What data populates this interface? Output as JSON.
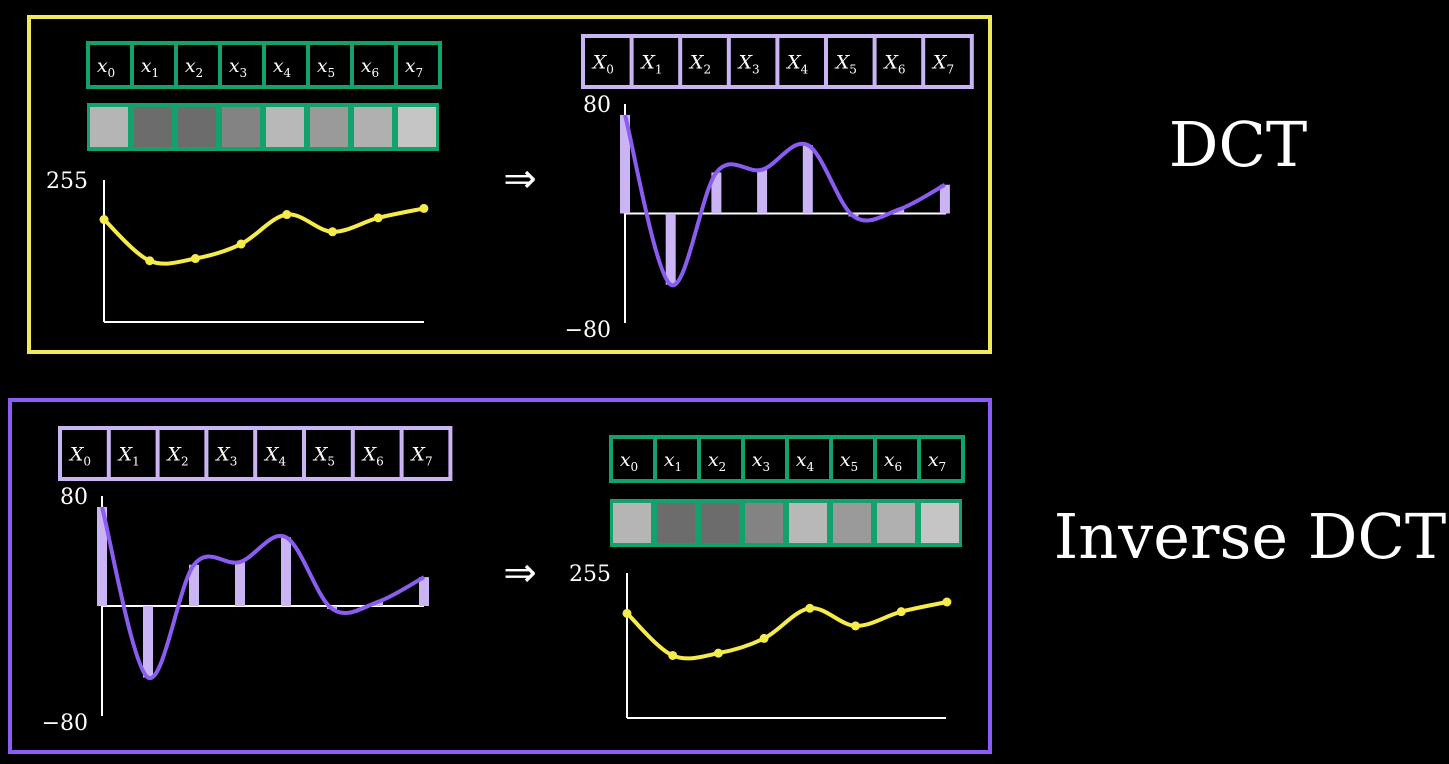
{
  "titles": {
    "dct": "DCT",
    "inverse": "Inverse DCT"
  },
  "arrow": "⇒",
  "colors": {
    "dct_frame": "#f2e95a",
    "inverse_frame": "#8b5cf6",
    "green": "#13a26b",
    "lavender": "#cbb4f4",
    "yellow_curve": "#f5ec4c",
    "purple_curve": "#8a5cf0",
    "axis": "#ffffff"
  },
  "signal_labels": [
    "x0",
    "x1",
    "x2",
    "x3",
    "x4",
    "x5",
    "x6",
    "x7"
  ],
  "coeff_labels": [
    "X0",
    "X1",
    "X2",
    "X3",
    "X4",
    "X5",
    "X6",
    "X7"
  ],
  "pixel_grays": [
    "#b5b5b5",
    "#6c6c6c",
    "#6c6c6c",
    "#838383",
    "#b8b8b8",
    "#9a9a9a",
    "#b0b0b0",
    "#c5c5c5"
  ],
  "chart_data": [
    {
      "type": "line",
      "panel": "dct-input",
      "x": [
        0,
        1,
        2,
        3,
        4,
        5,
        6,
        7
      ],
      "values": [
        184,
        110,
        114,
        140,
        193,
        162,
        187,
        204
      ],
      "ylim": [
        0,
        255
      ],
      "ytick_labels": [
        "255"
      ]
    },
    {
      "type": "bar",
      "panel": "dct-output",
      "x": [
        0,
        1,
        2,
        3,
        4,
        5,
        6,
        7
      ],
      "values": [
        72,
        -52,
        30,
        32,
        50,
        -2,
        3,
        21
      ],
      "ylim": [
        -80,
        80
      ],
      "ytick_labels": [
        "80",
        "−80"
      ]
    },
    {
      "type": "bar",
      "panel": "inverse-input",
      "x": [
        0,
        1,
        2,
        3,
        4,
        5,
        6,
        7
      ],
      "values": [
        72,
        -52,
        30,
        32,
        50,
        -2,
        3,
        21
      ],
      "ylim": [
        -80,
        80
      ],
      "ytick_labels": [
        "80",
        "−80"
      ]
    },
    {
      "type": "line",
      "panel": "inverse-output",
      "x": [
        0,
        1,
        2,
        3,
        4,
        5,
        6,
        7
      ],
      "values": [
        184,
        110,
        114,
        140,
        193,
        162,
        187,
        204
      ],
      "ylim": [
        0,
        255
      ],
      "ytick_labels": [
        "255"
      ]
    }
  ]
}
